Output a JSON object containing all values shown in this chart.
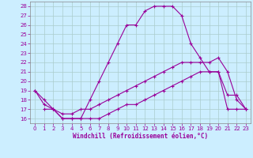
{
  "xlabel": "Windchill (Refroidissement éolien,°C)",
  "bg_color": "#cceeff",
  "grid_color": "#aacccc",
  "line_color": "#990099",
  "xlim": [
    -0.5,
    23.5
  ],
  "ylim": [
    15.5,
    28.5
  ],
  "xticks": [
    0,
    1,
    2,
    3,
    4,
    5,
    6,
    7,
    8,
    9,
    10,
    11,
    12,
    13,
    14,
    15,
    16,
    17,
    18,
    19,
    20,
    21,
    22,
    23
  ],
  "yticks": [
    16,
    17,
    18,
    19,
    20,
    21,
    22,
    23,
    24,
    25,
    26,
    27,
    28
  ],
  "line1_x": [
    0,
    1,
    2,
    3,
    4,
    5,
    6,
    7,
    8,
    9,
    10,
    11,
    12,
    13,
    14,
    15,
    16,
    17,
    18,
    19,
    20,
    21,
    22,
    23
  ],
  "line1_y": [
    19,
    18,
    17,
    16,
    16,
    16,
    18,
    20,
    22,
    24,
    26,
    26,
    27.5,
    28,
    28,
    28,
    27,
    24,
    22.5,
    21,
    21,
    18.5,
    18.5,
    17
  ],
  "line2_x": [
    0,
    1,
    2,
    3,
    4,
    5,
    6,
    7,
    8,
    9,
    10,
    11,
    12,
    13,
    14,
    15,
    16,
    17,
    18,
    19,
    20,
    21,
    22,
    23
  ],
  "line2_y": [
    19,
    17.5,
    17,
    16.5,
    16.5,
    17,
    17,
    17.5,
    18,
    18.5,
    19,
    19.5,
    20,
    20.5,
    21,
    21.5,
    22,
    22,
    22,
    22,
    22.5,
    21,
    18,
    17
  ],
  "line3_x": [
    1,
    2,
    3,
    4,
    5,
    6,
    7,
    8,
    9,
    10,
    11,
    12,
    13,
    14,
    15,
    16,
    17,
    18,
    19,
    20,
    21,
    22,
    23
  ],
  "line3_y": [
    17,
    17,
    16,
    16,
    16,
    16,
    16,
    16.5,
    17,
    17.5,
    17.5,
    18,
    18.5,
    19,
    19.5,
    20,
    20.5,
    21,
    21,
    21,
    17,
    17,
    17
  ]
}
